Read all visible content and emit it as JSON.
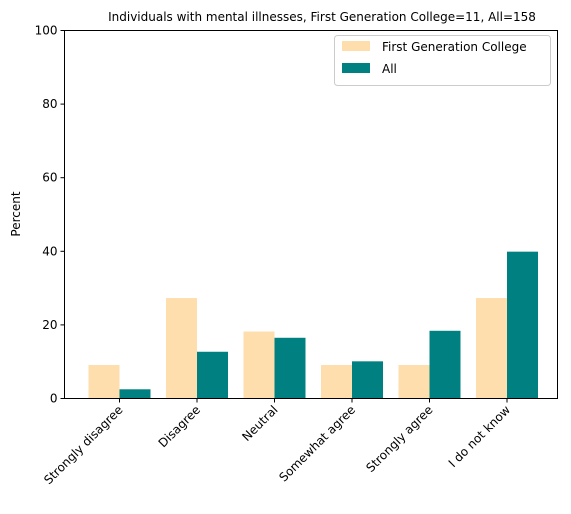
{
  "chart_data": {
    "type": "bar",
    "title": "Individuals with mental illnesses, First Generation College=11, All=158",
    "xlabel": "",
    "ylabel": "Percent",
    "ylim": [
      0,
      100
    ],
    "yticks": [
      0,
      20,
      40,
      60,
      80,
      100
    ],
    "grid": false,
    "legend_position": "top-right",
    "categories": [
      "Strongly disagree",
      "Disagree",
      "Neutral",
      "Somewhat agree",
      "Strongly agree",
      "I do not know"
    ],
    "series": [
      {
        "name": "First Generation College",
        "color": "#FFDEAD",
        "values": [
          9.1,
          27.3,
          18.2,
          9.1,
          9.1,
          27.3
        ]
      },
      {
        "name": "All",
        "color": "#008080",
        "values": [
          2.5,
          12.7,
          16.5,
          10.1,
          18.4,
          39.9
        ]
      }
    ]
  }
}
